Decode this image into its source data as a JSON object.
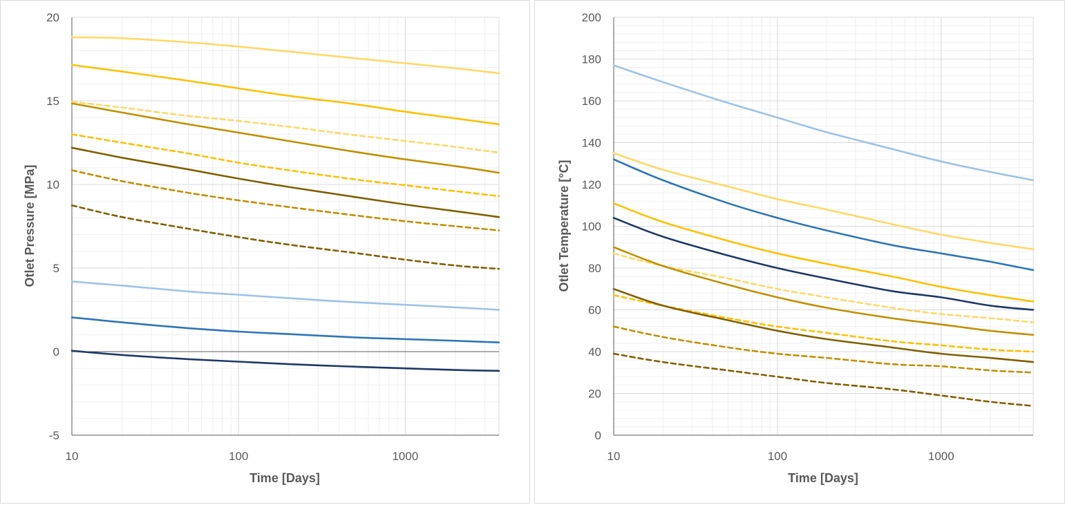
{
  "chart_data": [
    {
      "type": "line",
      "xlabel": "Time [Days]",
      "ylabel": "Otlet Pressure [MPa]",
      "x_scale": "log",
      "xlim": [
        10,
        3650
      ],
      "ylim": [
        -5,
        20
      ],
      "x_ticks": [
        10,
        100,
        1000
      ],
      "x_tick_labels": [
        "10",
        "100",
        "1000"
      ],
      "y_ticks": [
        -5,
        0,
        5,
        10,
        15,
        20
      ],
      "y_tick_labels": [
        "-5",
        "0",
        "5",
        "10",
        "15",
        "20"
      ],
      "grid": true,
      "legend": "none",
      "series": [
        {
          "color": "#FFD966",
          "dash": false,
          "x": [
            10,
            20,
            50,
            100,
            200,
            500,
            1000,
            2000,
            3650
          ],
          "values": [
            18.8,
            18.75,
            18.5,
            18.25,
            17.95,
            17.55,
            17.25,
            16.95,
            16.65
          ]
        },
        {
          "color": "#FFC000",
          "dash": false,
          "x": [
            10,
            20,
            50,
            100,
            200,
            500,
            1000,
            2000,
            3650
          ],
          "values": [
            17.15,
            16.75,
            16.2,
            15.75,
            15.3,
            14.8,
            14.35,
            13.95,
            13.6
          ]
        },
        {
          "color": "#BF9000",
          "dash": false,
          "x": [
            10,
            20,
            50,
            100,
            200,
            500,
            1000,
            2000,
            3650
          ],
          "values": [
            14.85,
            14.3,
            13.6,
            13.1,
            12.6,
            11.95,
            11.5,
            11.1,
            10.7
          ]
        },
        {
          "color": "#7F6000",
          "dash": false,
          "x": [
            10,
            20,
            50,
            100,
            200,
            500,
            1000,
            2000,
            3650
          ],
          "values": [
            12.2,
            11.6,
            10.9,
            10.35,
            9.85,
            9.25,
            8.8,
            8.4,
            8.05
          ]
        },
        {
          "color": "#FFD966",
          "dash": true,
          "x": [
            10,
            20,
            50,
            100,
            200,
            500,
            1000,
            2000,
            3650
          ],
          "values": [
            14.95,
            14.6,
            14.1,
            13.8,
            13.45,
            12.95,
            12.6,
            12.25,
            11.9
          ]
        },
        {
          "color": "#FFC000",
          "dash": true,
          "x": [
            10,
            20,
            50,
            100,
            200,
            500,
            1000,
            2000,
            3650
          ],
          "values": [
            13.0,
            12.5,
            11.85,
            11.3,
            10.85,
            10.3,
            9.95,
            9.6,
            9.3
          ]
        },
        {
          "color": "#BF9000",
          "dash": true,
          "x": [
            10,
            20,
            50,
            100,
            200,
            500,
            1000,
            2000,
            3650
          ],
          "values": [
            10.85,
            10.2,
            9.5,
            9.05,
            8.65,
            8.15,
            7.8,
            7.5,
            7.25
          ]
        },
        {
          "color": "#7F6000",
          "dash": true,
          "x": [
            10,
            20,
            50,
            100,
            200,
            500,
            1000,
            2000,
            3650
          ],
          "values": [
            8.75,
            8.05,
            7.35,
            6.85,
            6.4,
            5.9,
            5.5,
            5.15,
            4.95
          ]
        },
        {
          "color": "#9DC3E6",
          "dash": false,
          "x": [
            10,
            20,
            50,
            100,
            200,
            500,
            1000,
            2000,
            3650
          ],
          "values": [
            4.2,
            3.95,
            3.6,
            3.4,
            3.2,
            2.95,
            2.8,
            2.65,
            2.5
          ]
        },
        {
          "color": "#2E75B6",
          "dash": false,
          "x": [
            10,
            20,
            50,
            100,
            200,
            500,
            1000,
            2000,
            3650
          ],
          "values": [
            2.05,
            1.75,
            1.4,
            1.2,
            1.05,
            0.85,
            0.75,
            0.65,
            0.55
          ]
        },
        {
          "color": "#1F3864",
          "dash": false,
          "x": [
            10,
            20,
            50,
            100,
            200,
            500,
            1000,
            2000,
            3650
          ],
          "values": [
            0.05,
            -0.2,
            -0.45,
            -0.6,
            -0.75,
            -0.9,
            -1.0,
            -1.1,
            -1.15
          ]
        }
      ]
    },
    {
      "type": "line",
      "xlabel": "Time [Days]",
      "ylabel": "Otlet Temperature [°C]",
      "x_scale": "log",
      "xlim": [
        10,
        3650
      ],
      "ylim": [
        0,
        200
      ],
      "x_ticks": [
        10,
        100,
        1000
      ],
      "x_tick_labels": [
        "10",
        "100",
        "1000"
      ],
      "y_ticks": [
        0,
        20,
        40,
        60,
        80,
        100,
        120,
        140,
        160,
        180,
        200
      ],
      "y_tick_labels": [
        "0",
        "20",
        "40",
        "60",
        "80",
        "100",
        "120",
        "140",
        "160",
        "180",
        "200"
      ],
      "grid": true,
      "legend": "none",
      "series": [
        {
          "color": "#9DC3E6",
          "dash": false,
          "x": [
            10,
            20,
            50,
            100,
            200,
            500,
            1000,
            2000,
            3650
          ],
          "values": [
            177,
            169,
            159,
            152,
            145,
            137,
            131,
            126,
            122
          ]
        },
        {
          "color": "#FFD966",
          "dash": false,
          "x": [
            10,
            20,
            50,
            100,
            200,
            500,
            1000,
            2000,
            3650
          ],
          "values": [
            135,
            127,
            119,
            113,
            108,
            101,
            96,
            92,
            89
          ]
        },
        {
          "color": "#2E75B6",
          "dash": false,
          "x": [
            10,
            20,
            50,
            100,
            200,
            500,
            1000,
            2000,
            3650
          ],
          "values": [
            132,
            122,
            111,
            104,
            98,
            91,
            87,
            83,
            79
          ]
        },
        {
          "color": "#FFC000",
          "dash": false,
          "x": [
            10,
            20,
            50,
            100,
            200,
            500,
            1000,
            2000,
            3650
          ],
          "values": [
            111,
            102,
            93,
            87,
            82,
            76,
            71,
            67,
            64
          ]
        },
        {
          "color": "#1F3864",
          "dash": false,
          "x": [
            10,
            20,
            50,
            100,
            200,
            500,
            1000,
            2000,
            3650
          ],
          "values": [
            104,
            95,
            86,
            80,
            75,
            69,
            66,
            62,
            60
          ]
        },
        {
          "color": "#FFD966",
          "dash": true,
          "x": [
            10,
            20,
            50,
            100,
            200,
            500,
            1000,
            2000,
            3650
          ],
          "values": [
            87,
            81,
            75,
            70,
            66,
            61,
            58,
            56,
            54
          ]
        },
        {
          "color": "#BF9000",
          "dash": false,
          "x": [
            10,
            20,
            50,
            100,
            200,
            500,
            1000,
            2000,
            3650
          ],
          "values": [
            90,
            81,
            72,
            66,
            61,
            56,
            53,
            50,
            48
          ]
        },
        {
          "color": "#FFC000",
          "dash": true,
          "x": [
            10,
            20,
            50,
            100,
            200,
            500,
            1000,
            2000,
            3650
          ],
          "values": [
            67,
            62,
            56,
            52,
            49,
            45,
            43,
            41,
            40
          ]
        },
        {
          "color": "#7F6000",
          "dash": false,
          "x": [
            10,
            20,
            50,
            100,
            200,
            500,
            1000,
            2000,
            3650
          ],
          "values": [
            70,
            62,
            55,
            50,
            46,
            42,
            39,
            37,
            35
          ]
        },
        {
          "color": "#BF9000",
          "dash": true,
          "x": [
            10,
            20,
            50,
            100,
            200,
            500,
            1000,
            2000,
            3650
          ],
          "values": [
            52,
            47,
            42,
            39,
            37,
            34,
            33,
            31,
            30
          ]
        },
        {
          "color": "#7F6000",
          "dash": true,
          "x": [
            10,
            20,
            50,
            100,
            200,
            500,
            1000,
            2000,
            3650
          ],
          "values": [
            39,
            35,
            31,
            28,
            25,
            22,
            19,
            16,
            14
          ]
        }
      ]
    }
  ]
}
